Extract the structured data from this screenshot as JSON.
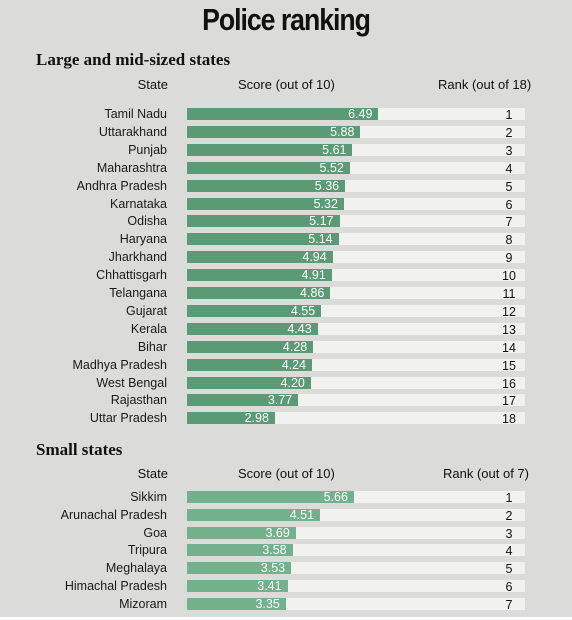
{
  "title": "Police ranking",
  "chart_data": [
    {
      "type": "bar",
      "title": "Large and mid-sized states",
      "headers": {
        "state": "State",
        "score": "Score (out of 10)",
        "rank": "Rank (out of 18)"
      },
      "xlim": [
        0,
        10
      ],
      "rows": [
        {
          "state": "Tamil Nadu",
          "score": "6.49",
          "value": 6.49,
          "rank": "1"
        },
        {
          "state": "Uttarakhand",
          "score": "5.88",
          "value": 5.88,
          "rank": "2"
        },
        {
          "state": "Punjab",
          "score": "5.61",
          "value": 5.61,
          "rank": "3"
        },
        {
          "state": "Maharashtra",
          "score": "5.52",
          "value": 5.52,
          "rank": "4"
        },
        {
          "state": "Andhra Pradesh",
          "score": "5.36",
          "value": 5.36,
          "rank": "5"
        },
        {
          "state": "Karnataka",
          "score": "5.32",
          "value": 5.32,
          "rank": "6"
        },
        {
          "state": "Odisha",
          "score": "5.17",
          "value": 5.17,
          "rank": "7"
        },
        {
          "state": "Haryana",
          "score": "5.14",
          "value": 5.14,
          "rank": "8"
        },
        {
          "state": "Jharkhand",
          "score": "4.94",
          "value": 4.94,
          "rank": "9"
        },
        {
          "state": "Chhattisgarh",
          "score": "4.91",
          "value": 4.91,
          "rank": "10"
        },
        {
          "state": "Telangana",
          "score": "4.86",
          "value": 4.86,
          "rank": "11"
        },
        {
          "state": "Gujarat",
          "score": "4.55",
          "value": 4.55,
          "rank": "12"
        },
        {
          "state": "Kerala",
          "score": "4.43",
          "value": 4.43,
          "rank": "13"
        },
        {
          "state": "Bihar",
          "score": "4.28",
          "value": 4.28,
          "rank": "14"
        },
        {
          "state": "Madhya Pradesh",
          "score": "4.24",
          "value": 4.24,
          "rank": "15"
        },
        {
          "state": "West Bengal",
          "score": "4.20",
          "value": 4.2,
          "rank": "16"
        },
        {
          "state": "Rajasthan",
          "score": "3.77",
          "value": 3.77,
          "rank": "17"
        },
        {
          "state": "Uttar Pradesh",
          "score": "2.98",
          "value": 2.98,
          "rank": "18"
        }
      ],
      "bar_color": "#5a9a74"
    },
    {
      "type": "bar",
      "title": "Small states",
      "headers": {
        "state": "State",
        "score": "Score (out of 10)",
        "rank": "Rank (out of 7)"
      },
      "xlim": [
        0,
        10
      ],
      "rows": [
        {
          "state": "Sikkim",
          "score": "5.66",
          "value": 5.66,
          "rank": "1"
        },
        {
          "state": "Arunachal Pradesh",
          "score": "4.51",
          "value": 4.51,
          "rank": "2"
        },
        {
          "state": "Goa",
          "score": "3.69",
          "value": 3.69,
          "rank": "3"
        },
        {
          "state": "Tripura",
          "score": "3.58",
          "value": 3.58,
          "rank": "4"
        },
        {
          "state": "Meghalaya",
          "score": "3.53",
          "value": 3.53,
          "rank": "5"
        },
        {
          "state": "Himachal Pradesh",
          "score": "3.41",
          "value": 3.41,
          "rank": "6"
        },
        {
          "state": "Mizoram",
          "score": "3.35",
          "value": 3.35,
          "rank": "7"
        }
      ],
      "bar_color": "#73b08c"
    }
  ]
}
